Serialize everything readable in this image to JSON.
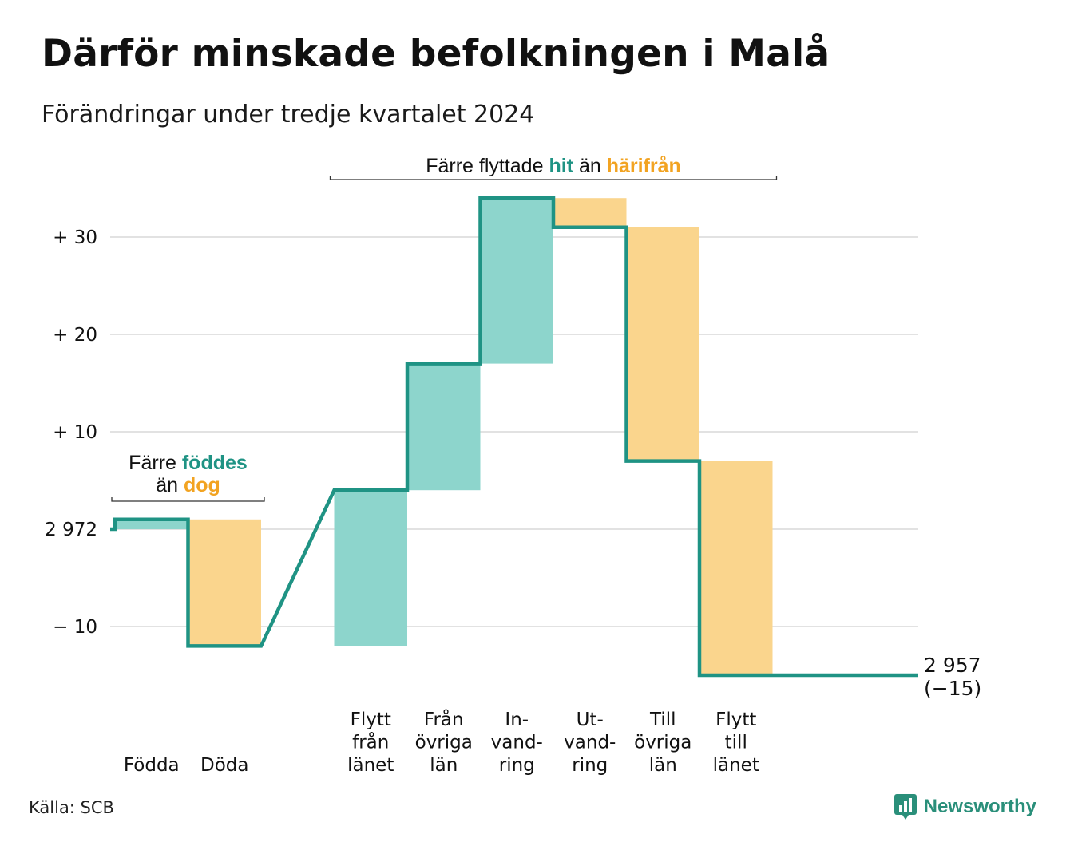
{
  "title": "Därför minskade befolkningen i Malå",
  "subtitle": "Förändringar under tredje kvartalet 2024",
  "source": "Källa: SCB",
  "brand": "Newsworthy",
  "colors": {
    "increase_fill": "#8dd5cc",
    "decrease_fill": "#fad58d",
    "line": "#1f9384",
    "hit": "#1f9384",
    "harifran": "#f2a321",
    "grid": "#e2e2e2"
  },
  "chart_data": {
    "type": "bar",
    "subtype": "waterfall",
    "baseline": 2972,
    "end": {
      "value": 2957,
      "label": "2 957",
      "change_label": "(−15)"
    },
    "y_ticks": [
      {
        "value": 30,
        "label": "+ 30"
      },
      {
        "value": 20,
        "label": "+ 20"
      },
      {
        "value": 10,
        "label": "+ 10"
      },
      {
        "value": 0,
        "label": "2 972"
      },
      {
        "value": -10,
        "label": "− 10"
      }
    ],
    "ylim": [
      -16,
      35
    ],
    "steps": [
      {
        "category": "Födda",
        "label_lines": [
          "Födda"
        ],
        "change": 1,
        "type": "increase"
      },
      {
        "category": "Döda",
        "label_lines": [
          "Döda"
        ],
        "change": -13,
        "type": "decrease"
      },
      {
        "category": "Flytt från länet",
        "label_lines": [
          "Flytt",
          "från",
          "länet"
        ],
        "change": 16,
        "type": "increase"
      },
      {
        "category": "Från övriga län",
        "label_lines": [
          "Från",
          "övriga",
          "län"
        ],
        "change": 13,
        "type": "increase"
      },
      {
        "category": "Invandring",
        "label_lines": [
          "In-",
          "vand-",
          "ring"
        ],
        "change": 17,
        "type": "increase"
      },
      {
        "category": "Utvandring",
        "label_lines": [
          "Ut-",
          "vand-",
          "ring"
        ],
        "change": -3,
        "type": "decrease"
      },
      {
        "category": "Till övriga län",
        "label_lines": [
          "Till",
          "övriga",
          "län"
        ],
        "change": -24,
        "type": "decrease"
      },
      {
        "category": "Flytt till länet",
        "label_lines": [
          "Flytt",
          "till",
          "länet"
        ],
        "change": -22,
        "type": "decrease"
      }
    ],
    "annotations": [
      {
        "id": "births",
        "parts": [
          {
            "text": "Färre",
            "style": "plain"
          },
          {
            "text": "föddes",
            "style": "hit"
          },
          {
            "text": "än",
            "style": "plain"
          },
          {
            "text": "dog",
            "style": "harifran"
          }
        ],
        "spans": [
          "Födda",
          "Döda"
        ]
      },
      {
        "id": "migration",
        "parts": [
          {
            "text": "Färre flyttade",
            "style": "plain"
          },
          {
            "text": "hit",
            "style": "hit"
          },
          {
            "text": "än",
            "style": "plain"
          },
          {
            "text": "härifrån",
            "style": "harifran"
          }
        ],
        "spans": [
          "Flytt från länet",
          "Flytt till länet"
        ]
      }
    ]
  }
}
